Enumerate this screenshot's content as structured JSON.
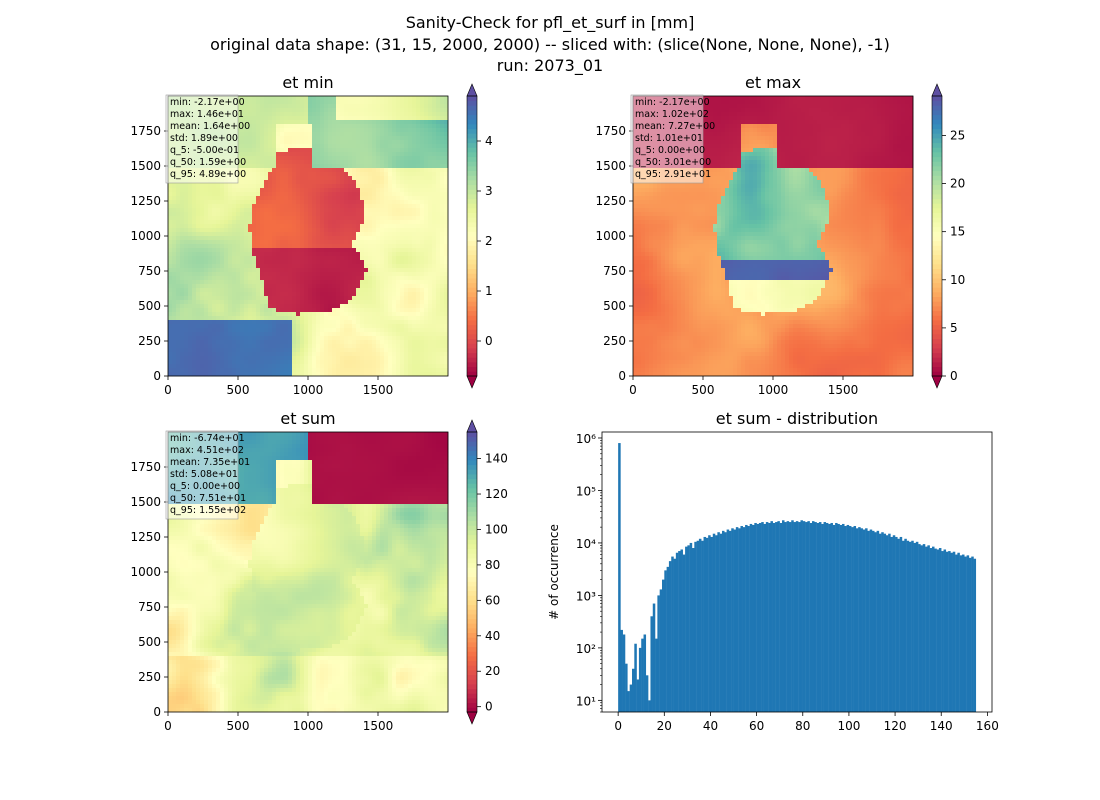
{
  "figure": {
    "title_line1": "Sanity-Check for pfl_et_surf in [mm]",
    "title_line2": "original data shape: (31, 15, 2000, 2000) -- sliced with: (slice(None, None, None), -1)",
    "title_line3": "run: 2073_01"
  },
  "chart_data": [
    {
      "type": "heatmap",
      "title": "et min",
      "colormap": "Spectral",
      "colormap_stops": [
        "#9e0142",
        "#d53e4f",
        "#f46d43",
        "#fdae61",
        "#fee08b",
        "#ffffbf",
        "#e6f598",
        "#abdda4",
        "#66c2a5",
        "#3288bd",
        "#5e4fa2"
      ],
      "xlim": [
        0,
        2000
      ],
      "ylim": [
        0,
        2000
      ],
      "xticks": [
        0,
        500,
        1000,
        1500
      ],
      "yticks": [
        0,
        250,
        500,
        750,
        1000,
        1250,
        1500,
        1750
      ],
      "colorbar": {
        "vmin": -0.7,
        "vmax": 4.9,
        "ticks": [
          0,
          1,
          2,
          3,
          4
        ]
      },
      "stats": [
        "min: -2.17e+00",
        "max: 1.46e+01",
        "mean: 1.64e+00",
        "std: 1.89e+00",
        "q_5: -5.00e-01",
        "q_50: 1.59e+00",
        "q_95: 4.89e+00"
      ]
    },
    {
      "type": "heatmap",
      "title": "et max",
      "colormap": "Spectral",
      "colormap_stops": [
        "#9e0142",
        "#d53e4f",
        "#f46d43",
        "#fdae61",
        "#fee08b",
        "#ffffbf",
        "#e6f598",
        "#abdda4",
        "#66c2a5",
        "#3288bd",
        "#5e4fa2"
      ],
      "xlim": [
        0,
        2000
      ],
      "ylim": [
        0,
        2000
      ],
      "xticks": [
        0,
        500,
        1000,
        1500
      ],
      "yticks": [
        0,
        250,
        500,
        750,
        1000,
        1250,
        1500,
        1750
      ],
      "colorbar": {
        "vmin": 0,
        "vmax": 29.1,
        "ticks": [
          0,
          5,
          10,
          15,
          20,
          25
        ]
      },
      "stats": [
        "min: -2.17e+00",
        "max: 1.02e+02",
        "mean: 7.27e+00",
        "std: 1.01e+01",
        "q_5: 0.00e+00",
        "q_50: 3.01e+00",
        "q_95: 2.91e+01"
      ]
    },
    {
      "type": "heatmap",
      "title": "et sum",
      "colormap": "Spectral",
      "colormap_stops": [
        "#9e0142",
        "#d53e4f",
        "#f46d43",
        "#fdae61",
        "#fee08b",
        "#ffffbf",
        "#e6f598",
        "#abdda4",
        "#66c2a5",
        "#3288bd",
        "#5e4fa2"
      ],
      "xlim": [
        0,
        2000
      ],
      "ylim": [
        0,
        2000
      ],
      "xticks": [
        0,
        500,
        1000,
        1500
      ],
      "yticks": [
        0,
        250,
        500,
        750,
        1000,
        1250,
        1500,
        1750
      ],
      "colorbar": {
        "vmin": -3,
        "vmax": 155,
        "ticks": [
          0,
          20,
          40,
          60,
          80,
          100,
          120,
          140
        ]
      },
      "stats": [
        "min: -6.74e+01",
        "max: 4.51e+02",
        "mean: 7.35e+01",
        "std: 5.08e+01",
        "q_5: 0.00e+00",
        "q_50: 7.51e+01",
        "q_95: 1.55e+02"
      ]
    },
    {
      "type": "bar",
      "title": "et sum - distribution",
      "ylabel": "# of occurrence",
      "yscale": "log",
      "xlim": [
        -7,
        162
      ],
      "ylim": [
        6,
        1300000
      ],
      "xticks": [
        0,
        20,
        40,
        60,
        80,
        100,
        120,
        140,
        160
      ],
      "yticks": [
        {
          "value": 10,
          "label": "10¹"
        },
        {
          "value": 100,
          "label": "10²"
        },
        {
          "value": 1000,
          "label": "10³"
        },
        {
          "value": 10000,
          "label": "10⁴"
        },
        {
          "value": 100000,
          "label": "10⁵"
        },
        {
          "value": 1000000,
          "label": "10⁶"
        }
      ],
      "color": "#1f77b4",
      "bin_width": 1,
      "bins": [
        [
          0,
          800000
        ],
        [
          1,
          220
        ],
        [
          2,
          180
        ],
        [
          3,
          50
        ],
        [
          4,
          15
        ],
        [
          5,
          20
        ],
        [
          6,
          40
        ],
        [
          7,
          120
        ],
        [
          8,
          25
        ],
        [
          9,
          100
        ],
        [
          10,
          150
        ],
        [
          11,
          180
        ],
        [
          12,
          30
        ],
        [
          13,
          10
        ],
        [
          14,
          400
        ],
        [
          15,
          700
        ],
        [
          16,
          150
        ],
        [
          17,
          1000
        ],
        [
          18,
          1300
        ],
        [
          19,
          2000
        ],
        [
          20,
          3000
        ],
        [
          21,
          3500
        ],
        [
          22,
          4500
        ],
        [
          23,
          5500
        ],
        [
          24,
          5000
        ],
        [
          25,
          6500
        ],
        [
          26,
          7000
        ],
        [
          27,
          7500
        ],
        [
          28,
          6000
        ],
        [
          29,
          8500
        ],
        [
          30,
          9000
        ],
        [
          31,
          10000
        ],
        [
          32,
          8000
        ],
        [
          33,
          10500
        ],
        [
          34,
          11000
        ],
        [
          35,
          12000
        ],
        [
          36,
          11000
        ],
        [
          37,
          13000
        ],
        [
          38,
          12500
        ],
        [
          39,
          14000
        ],
        [
          40,
          13000
        ],
        [
          41,
          15000
        ],
        [
          42,
          14000
        ],
        [
          43,
          16000
        ],
        [
          44,
          15000
        ],
        [
          45,
          17000
        ],
        [
          46,
          16000
        ],
        [
          47,
          18000
        ],
        [
          48,
          17000
        ],
        [
          49,
          19000
        ],
        [
          50,
          18000
        ],
        [
          51,
          20000
        ],
        [
          52,
          19000
        ],
        [
          53,
          21000
        ],
        [
          54,
          20000
        ],
        [
          55,
          22000
        ],
        [
          56,
          21000
        ],
        [
          57,
          23000
        ],
        [
          58,
          22000
        ],
        [
          59,
          24000
        ],
        [
          60,
          23000
        ],
        [
          61,
          24000
        ],
        [
          62,
          25000
        ],
        [
          63,
          23000
        ],
        [
          64,
          25000
        ],
        [
          65,
          24000
        ],
        [
          66,
          26000
        ],
        [
          67,
          24000
        ],
        [
          68,
          25000
        ],
        [
          69,
          26000
        ],
        [
          70,
          24000
        ],
        [
          71,
          27000
        ],
        [
          72,
          25000
        ],
        [
          73,
          26000
        ],
        [
          74,
          25000
        ],
        [
          75,
          27000
        ],
        [
          76,
          25000
        ],
        [
          77,
          26000
        ],
        [
          78,
          25000
        ],
        [
          79,
          27000
        ],
        [
          80,
          26000
        ],
        [
          81,
          25000
        ],
        [
          82,
          26000
        ],
        [
          83,
          24000
        ],
        [
          84,
          26000
        ],
        [
          85,
          25000
        ],
        [
          86,
          24000
        ],
        [
          87,
          25000
        ],
        [
          88,
          23000
        ],
        [
          89,
          25000
        ],
        [
          90,
          24000
        ],
        [
          91,
          23000
        ],
        [
          92,
          24000
        ],
        [
          93,
          22000
        ],
        [
          94,
          24000
        ],
        [
          95,
          23000
        ],
        [
          96,
          22000
        ],
        [
          97,
          23000
        ],
        [
          98,
          21000
        ],
        [
          99,
          22000
        ],
        [
          100,
          21000
        ],
        [
          101,
          20000
        ],
        [
          102,
          21000
        ],
        [
          103,
          19000
        ],
        [
          104,
          20000
        ],
        [
          105,
          19000
        ],
        [
          106,
          18000
        ],
        [
          107,
          19000
        ],
        [
          108,
          17000
        ],
        [
          109,
          18000
        ],
        [
          110,
          17000
        ],
        [
          111,
          16000
        ],
        [
          112,
          17000
        ],
        [
          113,
          15000
        ],
        [
          114,
          16000
        ],
        [
          115,
          15000
        ],
        [
          116,
          14000
        ],
        [
          117,
          15000
        ],
        [
          118,
          13000
        ],
        [
          119,
          14000
        ],
        [
          120,
          13000
        ],
        [
          121,
          12000
        ],
        [
          122,
          13000
        ],
        [
          123,
          11000
        ],
        [
          124,
          12000
        ],
        [
          125,
          11000
        ],
        [
          126,
          10500
        ],
        [
          127,
          11000
        ],
        [
          128,
          10000
        ],
        [
          129,
          10500
        ],
        [
          130,
          9500
        ],
        [
          131,
          9000
        ],
        [
          132,
          9500
        ],
        [
          133,
          8500
        ],
        [
          134,
          9000
        ],
        [
          135,
          8000
        ],
        [
          136,
          8500
        ],
        [
          137,
          7800
        ],
        [
          138,
          7500
        ],
        [
          139,
          8000
        ],
        [
          140,
          7000
        ],
        [
          141,
          7500
        ],
        [
          142,
          6800
        ],
        [
          143,
          7000
        ],
        [
          144,
          6500
        ],
        [
          145,
          6800
        ],
        [
          146,
          6000
        ],
        [
          147,
          6500
        ],
        [
          148,
          5800
        ],
        [
          149,
          6000
        ],
        [
          150,
          5500
        ],
        [
          151,
          5800
        ],
        [
          152,
          5200
        ],
        [
          153,
          5500
        ],
        [
          154,
          5000
        ]
      ]
    }
  ]
}
